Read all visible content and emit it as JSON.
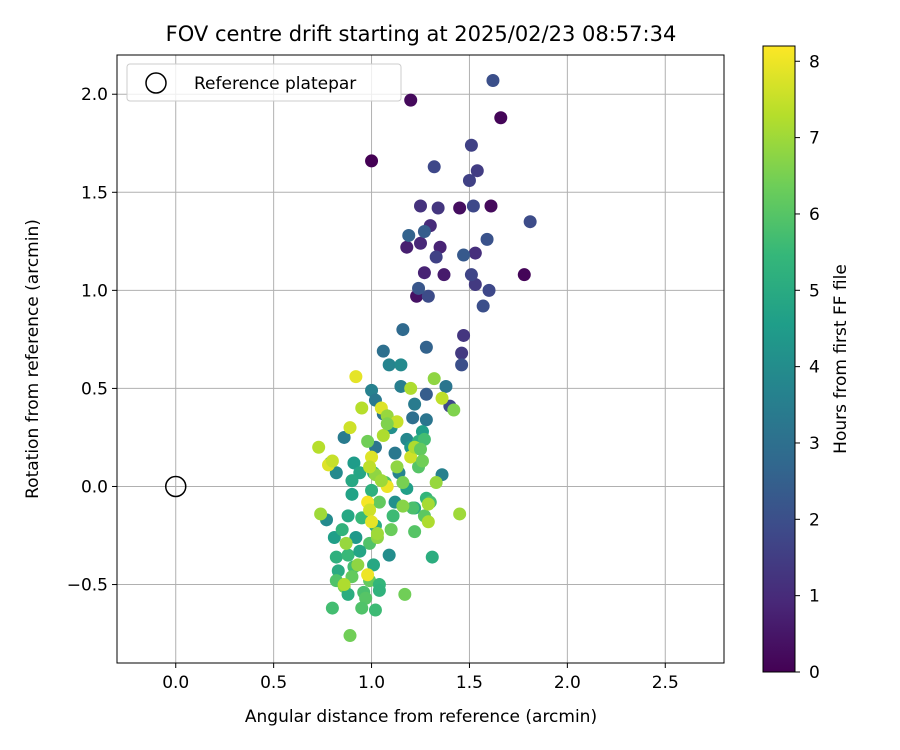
{
  "chart_data": {
    "type": "scatter",
    "title": "FOV centre drift starting at 2025/02/23 08:57:34",
    "xlabel": "Angular distance from reference (arcmin)",
    "ylabel": "Rotation from reference (arcmin)",
    "xlim": [
      -0.3,
      2.8
    ],
    "ylim": [
      -0.9,
      2.2
    ],
    "xticks": [
      0.0,
      0.5,
      1.0,
      1.5,
      2.0,
      2.5
    ],
    "xtick_labels": [
      "0.0",
      "0.5",
      "1.0",
      "1.5",
      "2.0",
      "2.5"
    ],
    "yticks": [
      -0.5,
      0.0,
      0.5,
      1.0,
      1.5,
      2.0
    ],
    "ytick_labels": [
      "−0.5",
      "0.0",
      "0.5",
      "1.0",
      "1.5",
      "2.0"
    ],
    "grid": true,
    "legend": {
      "placement": "top-left",
      "entries": [
        "Reference platepar"
      ]
    },
    "reference_point": {
      "x": 0.0,
      "y": 0.0,
      "label": "Reference platepar"
    },
    "colorbar": {
      "label": "Hours from first FF file",
      "colormap": "viridis",
      "range": [
        0,
        8.2
      ],
      "ticks": [
        0,
        1,
        2,
        3,
        4,
        5,
        6,
        7,
        8
      ],
      "tick_labels": [
        "0",
        "1",
        "2",
        "3",
        "4",
        "5",
        "6",
        "7",
        "8"
      ],
      "colors": [
        "#440154",
        "#482878",
        "#3e4989",
        "#31688e",
        "#26828e",
        "#1f9e89",
        "#35b779",
        "#6ece58",
        "#b5de2b",
        "#fde725"
      ]
    },
    "points": [
      [
        1.0,
        1.66,
        0.0
      ],
      [
        1.2,
        1.97,
        0.2
      ],
      [
        1.66,
        1.88,
        0.1
      ],
      [
        1.61,
        1.43,
        0.2
      ],
      [
        1.45,
        1.42,
        0.3
      ],
      [
        1.78,
        1.08,
        0.1
      ],
      [
        1.37,
        1.08,
        0.6
      ],
      [
        1.23,
        0.97,
        0.4
      ],
      [
        1.27,
        1.09,
        0.8
      ],
      [
        1.18,
        1.22,
        0.7
      ],
      [
        1.25,
        1.24,
        0.9
      ],
      [
        1.35,
        1.22,
        0.8
      ],
      [
        1.3,
        1.33,
        1.0
      ],
      [
        1.25,
        1.43,
        1.2
      ],
      [
        1.34,
        1.42,
        1.3
      ],
      [
        1.53,
        1.19,
        1.1
      ],
      [
        1.53,
        1.03,
        1.4
      ],
      [
        1.54,
        1.61,
        1.5
      ],
      [
        1.51,
        1.74,
        1.6
      ],
      [
        1.32,
        1.63,
        1.8
      ],
      [
        1.62,
        2.07,
        2.0
      ],
      [
        1.81,
        1.35,
        1.9
      ],
      [
        1.52,
        1.43,
        1.8
      ],
      [
        1.5,
        1.56,
        1.6
      ],
      [
        1.51,
        1.08,
        1.7
      ],
      [
        1.6,
        1.0,
        1.8
      ],
      [
        1.57,
        0.92,
        2.0
      ],
      [
        1.59,
        1.26,
        2.1
      ],
      [
        1.47,
        1.18,
        2.3
      ],
      [
        1.29,
        0.97,
        1.9
      ],
      [
        1.24,
        1.01,
        2.2
      ],
      [
        1.27,
        1.3,
        2.4
      ],
      [
        1.19,
        1.28,
        2.6
      ],
      [
        1.33,
        1.17,
        1.6
      ],
      [
        1.47,
        0.77,
        1.3
      ],
      [
        1.46,
        0.68,
        1.4
      ],
      [
        1.46,
        0.62,
        2.0
      ],
      [
        1.28,
        0.71,
        2.6
      ],
      [
        1.16,
        0.8,
        2.8
      ],
      [
        1.06,
        0.69,
        3.0
      ],
      [
        1.09,
        0.62,
        3.7
      ],
      [
        1.15,
        0.62,
        3.9
      ],
      [
        1.38,
        0.51,
        3.2
      ],
      [
        1.15,
        0.51,
        3.5
      ],
      [
        1.22,
        0.42,
        3.4
      ],
      [
        1.4,
        0.41,
        1.8
      ],
      [
        1.28,
        0.47,
        2.4
      ],
      [
        1.0,
        0.49,
        3.6
      ],
      [
        1.02,
        0.44,
        3.3
      ],
      [
        1.06,
        0.37,
        3.1
      ],
      [
        1.21,
        0.35,
        3.0
      ],
      [
        1.28,
        0.34,
        3.2
      ],
      [
        1.1,
        0.3,
        4.1
      ],
      [
        1.18,
        0.24,
        3.8
      ],
      [
        1.26,
        0.28,
        4.6
      ],
      [
        0.86,
        0.25,
        3.4
      ],
      [
        1.02,
        0.2,
        3.2
      ],
      [
        1.12,
        0.17,
        3.3
      ],
      [
        1.2,
        0.2,
        4.3
      ],
      [
        1.24,
        0.23,
        5.2
      ],
      [
        1.27,
        0.24,
        5.7
      ],
      [
        0.79,
        0.12,
        4.7
      ],
      [
        0.82,
        0.07,
        3.9
      ],
      [
        0.91,
        0.12,
        4.5
      ],
      [
        0.94,
        0.07,
        4.8
      ],
      [
        1.01,
        0.07,
        5.4
      ],
      [
        1.14,
        0.07,
        3.7
      ],
      [
        1.24,
        0.1,
        6.0
      ],
      [
        1.36,
        0.06,
        3.6
      ],
      [
        0.9,
        0.03,
        4.9
      ],
      [
        1.0,
        -0.02,
        5.2
      ],
      [
        1.07,
        0.02,
        5.9
      ],
      [
        1.18,
        -0.01,
        4.6
      ],
      [
        1.28,
        -0.06,
        5.4
      ],
      [
        0.9,
        -0.04,
        4.7
      ],
      [
        1.04,
        -0.08,
        6.2
      ],
      [
        1.12,
        -0.08,
        4.1
      ],
      [
        1.22,
        -0.11,
        5.0
      ],
      [
        1.3,
        -0.08,
        5.8
      ],
      [
        0.77,
        -0.17,
        3.9
      ],
      [
        0.88,
        -0.15,
        4.9
      ],
      [
        0.95,
        -0.16,
        5.5
      ],
      [
        1.02,
        -0.2,
        5.0
      ],
      [
        1.11,
        -0.15,
        5.6
      ],
      [
        1.21,
        -0.11,
        5.8
      ],
      [
        1.27,
        -0.15,
        6.1
      ],
      [
        0.81,
        -0.26,
        4.6
      ],
      [
        0.85,
        -0.22,
        5.3
      ],
      [
        0.92,
        -0.26,
        4.4
      ],
      [
        0.99,
        -0.29,
        5.9
      ],
      [
        1.03,
        -0.26,
        6.8
      ],
      [
        1.1,
        -0.22,
        6.3
      ],
      [
        1.22,
        -0.23,
        6.0
      ],
      [
        0.82,
        -0.36,
        5.2
      ],
      [
        0.88,
        -0.35,
        5.5
      ],
      [
        0.94,
        -0.33,
        4.8
      ],
      [
        1.01,
        -0.4,
        4.9
      ],
      [
        1.09,
        -0.35,
        4.0
      ],
      [
        1.31,
        -0.36,
        5.1
      ],
      [
        0.83,
        -0.43,
        5.0
      ],
      [
        0.91,
        -0.41,
        5.7
      ],
      [
        0.99,
        -0.48,
        6.2
      ],
      [
        1.04,
        -0.5,
        5.4
      ],
      [
        0.82,
        -0.48,
        5.9
      ],
      [
        0.86,
        -0.51,
        6.5
      ],
      [
        0.9,
        -0.46,
        6.2
      ],
      [
        0.96,
        -0.54,
        5.8
      ],
      [
        1.04,
        -0.53,
        5.3
      ],
      [
        0.88,
        -0.55,
        5.1
      ],
      [
        0.97,
        -0.57,
        6.0
      ],
      [
        1.17,
        -0.55,
        6.4
      ],
      [
        0.8,
        -0.62,
        5.7
      ],
      [
        0.95,
        -0.62,
        5.9
      ],
      [
        1.02,
        -0.63,
        5.6
      ],
      [
        0.89,
        -0.76,
        6.4
      ],
      [
        0.73,
        0.2,
        7.3
      ],
      [
        0.78,
        0.11,
        7.8
      ],
      [
        0.8,
        0.13,
        7.5
      ],
      [
        0.89,
        0.3,
        7.6
      ],
      [
        0.92,
        0.56,
        7.9
      ],
      [
        0.95,
        0.4,
        7.3
      ],
      [
        1.05,
        0.4,
        7.8
      ],
      [
        1.08,
        0.36,
        6.9
      ],
      [
        1.13,
        0.33,
        7.5
      ],
      [
        1.2,
        0.5,
        7.2
      ],
      [
        1.32,
        0.55,
        6.8
      ],
      [
        1.36,
        0.45,
        7.4
      ],
      [
        1.42,
        0.39,
        6.6
      ],
      [
        0.98,
        0.23,
        6.4
      ],
      [
        1.06,
        0.26,
        7.2
      ],
      [
        1.08,
        0.32,
        6.6
      ],
      [
        1.13,
        0.1,
        6.8
      ],
      [
        1.2,
        0.15,
        7.6
      ],
      [
        1.22,
        0.2,
        7.2
      ],
      [
        1.25,
        0.19,
        6.2
      ],
      [
        1.26,
        0.13,
        6.4
      ],
      [
        1.0,
        0.15,
        7.8
      ],
      [
        1.02,
        0.06,
        6.8
      ],
      [
        0.99,
        0.1,
        7.4
      ],
      [
        1.08,
        0.0,
        8.0
      ],
      [
        1.05,
        0.03,
        7.0
      ],
      [
        1.16,
        0.02,
        6.5
      ],
      [
        1.33,
        0.02,
        6.9
      ],
      [
        1.16,
        -0.1,
        6.7
      ],
      [
        1.29,
        -0.09,
        7.1
      ],
      [
        0.98,
        -0.08,
        8.1
      ],
      [
        0.99,
        -0.12,
        7.6
      ],
      [
        0.74,
        -0.14,
        7.0
      ],
      [
        1.0,
        -0.18,
        7.9
      ],
      [
        1.29,
        -0.18,
        7.2
      ],
      [
        1.45,
        -0.14,
        7.0
      ],
      [
        0.87,
        -0.29,
        6.9
      ],
      [
        1.03,
        -0.24,
        7.0
      ],
      [
        0.93,
        -0.4,
        6.8
      ],
      [
        0.98,
        -0.45,
        8.0
      ],
      [
        0.86,
        -0.5,
        7.2
      ]
    ]
  }
}
